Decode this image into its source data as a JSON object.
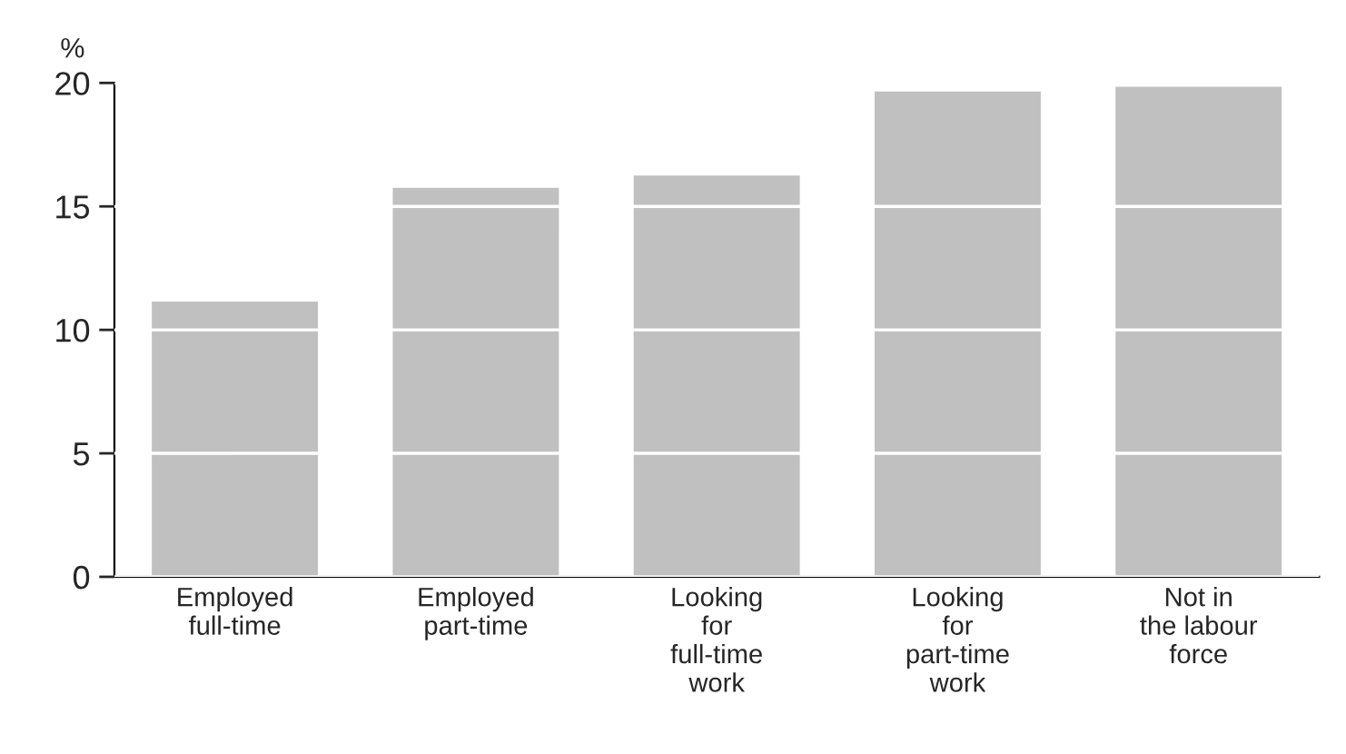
{
  "chart_data": {
    "type": "bar",
    "ylabel": "%",
    "categories": [
      "Employed\nfull-time",
      "Employed\npart-time",
      "Looking\nfor\nfull-time\nwork",
      "Looking\nfor\npart-time\nwork",
      "Not in\nthe labour\nforce"
    ],
    "values": [
      11.2,
      15.8,
      16.3,
      19.7,
      19.9
    ],
    "color": "#c0c0c0",
    "ylim": [
      0,
      20
    ],
    "yticks": [
      0,
      5,
      10,
      15,
      20
    ],
    "grid": "y",
    "legend": false
  }
}
